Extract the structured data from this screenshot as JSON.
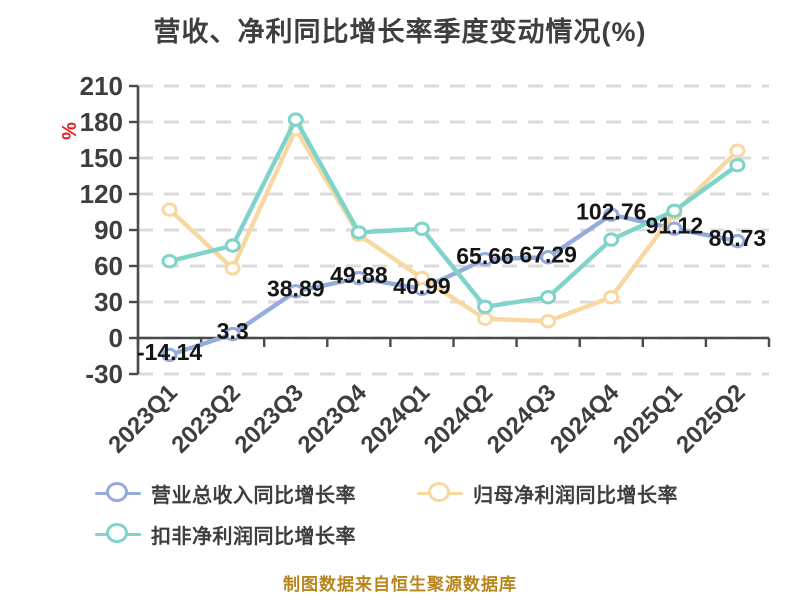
{
  "title": "营收、净利同比增长率季度变动情况(%)",
  "footer": "制图数据来自恒生聚源数据库",
  "colors": {
    "axis_text": "#3E3E3E",
    "data_label": "#151515",
    "gridline": "#DBDBDB",
    "axis_line": "#4A4A4A",
    "y_unit_label": "#E02020",
    "footer_text": "#B8861B",
    "marker_fill": "#FFFFFF",
    "background": "#FFFFFF"
  },
  "chart_data": {
    "type": "line",
    "title": "营收、净利同比增长率季度变动情况(%)",
    "xlabel": "",
    "ylabel": "%",
    "ylim": [
      -30,
      210
    ],
    "yticks": [
      210,
      180,
      150,
      120,
      90,
      60,
      30,
      0,
      -30
    ],
    "grid": "horizontal-dashed",
    "legend_position": "bottom",
    "categories": [
      "2023Q1",
      "2023Q2",
      "2023Q3",
      "2023Q4",
      "2024Q1",
      "2024Q2",
      "2024Q3",
      "2024Q4",
      "2025Q1",
      "2025Q2"
    ],
    "series": [
      {
        "name": "营业总收入同比增长率",
        "color": "#94ABDB",
        "values": [
          -14.14,
          3.3,
          38.89,
          49.88,
          40.99,
          65.66,
          67.29,
          102.76,
          91.12,
          80.73
        ],
        "point_labels": [
          "-14.14",
          "3.3",
          "38.89",
          "49.88",
          "40.99",
          "65.66",
          "67.29",
          "102.76",
          "91.12",
          "80.73"
        ]
      },
      {
        "name": "归母净利润同比增长率",
        "color": "#F8D8A0",
        "values": [
          107,
          58,
          174,
          86,
          50,
          16,
          14,
          34,
          104,
          156
        ],
        "point_labels": []
      },
      {
        "name": "扣非净利润同比增长率",
        "color": "#7ED3CA",
        "values": [
          64,
          77,
          182,
          88,
          91,
          26,
          34,
          82,
          106,
          144
        ],
        "point_labels": []
      }
    ]
  }
}
